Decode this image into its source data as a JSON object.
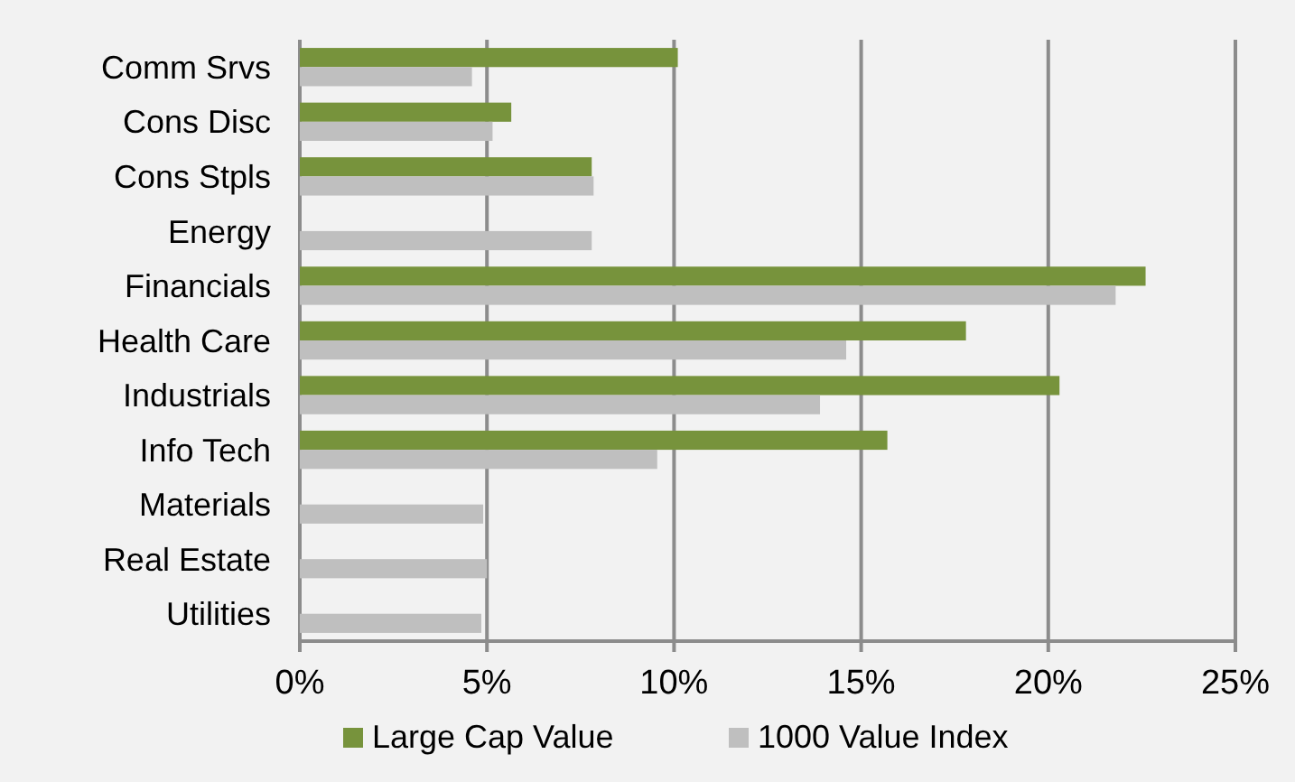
{
  "chart_data": {
    "type": "bar",
    "orientation": "horizontal",
    "categories": [
      "Comm Srvs",
      "Cons Disc",
      "Cons Stpls",
      "Energy",
      "Financials",
      "Health Care",
      "Industrials",
      "Info Tech",
      "Materials",
      "Real Estate",
      "Utilities"
    ],
    "series": [
      {
        "name": "Large Cap Value",
        "color": "#77933c",
        "values": [
          10.1,
          5.65,
          7.8,
          0,
          22.6,
          17.8,
          20.3,
          15.7,
          0,
          0,
          0
        ]
      },
      {
        "name": "1000 Value Index",
        "color": "#bfbfbf",
        "values": [
          4.6,
          5.15,
          7.85,
          7.8,
          21.8,
          14.6,
          13.9,
          9.55,
          4.9,
          5.0,
          4.85
        ]
      }
    ],
    "xlim": [
      0,
      25
    ],
    "xticks": [
      {
        "value": 0,
        "label": "0%"
      },
      {
        "value": 5,
        "label": "5%"
      },
      {
        "value": 10,
        "label": "10%"
      },
      {
        "value": 15,
        "label": "15%"
      },
      {
        "value": 20,
        "label": "20%"
      },
      {
        "value": 25,
        "label": "25%"
      }
    ],
    "grid": "x",
    "legend": "bottom"
  }
}
